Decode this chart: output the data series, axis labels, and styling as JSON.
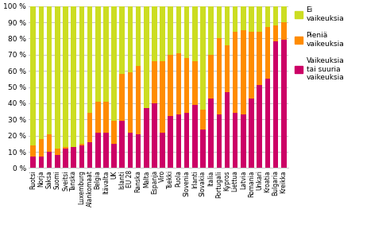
{
  "categories": [
    "Ruotsi",
    "Norja",
    "Saksa",
    "Suomi",
    "Sveitsi",
    "Tanska",
    "Luxemburg",
    "Alankomaat",
    "Belgia",
    "Itävalta",
    "UK",
    "Islanti",
    "EU 28",
    "Ranska",
    "Malta",
    "Espanja",
    "Viro",
    "Tsekki",
    "Puola",
    "Slovenia",
    "Irlanti",
    "Slovakia",
    "Italia",
    "Portugali",
    "Kypros",
    "Liettua",
    "Latvia",
    "Romania",
    "Unkari",
    "Kroatia",
    "Bulgaria",
    "Kreikka"
  ],
  "vaikeuksia": [
    7,
    7,
    10,
    8,
    12,
    13,
    14,
    16,
    22,
    22,
    15,
    29,
    22,
    21,
    37,
    40,
    22,
    32,
    33,
    34,
    39,
    24,
    43,
    33,
    47,
    34,
    33,
    43,
    51,
    55,
    78,
    79
  ],
  "pienia": [
    7,
    11,
    11,
    4,
    1,
    0,
    1,
    18,
    19,
    19,
    14,
    29,
    37,
    42,
    0,
    26,
    44,
    38,
    38,
    34,
    27,
    12,
    27,
    47,
    29,
    50,
    52,
    41,
    33,
    32,
    10,
    11
  ],
  "ei": [
    86,
    82,
    79,
    88,
    87,
    87,
    85,
    66,
    59,
    59,
    71,
    42,
    41,
    37,
    63,
    34,
    34,
    30,
    29,
    32,
    34,
    64,
    30,
    20,
    24,
    16,
    15,
    16,
    16,
    13,
    12,
    10
  ],
  "color_vaikeuksia": "#CC0066",
  "color_pienia": "#FF8C00",
  "color_ei": "#CCDD22",
  "yticks": [
    0,
    10,
    20,
    30,
    40,
    50,
    60,
    70,
    80,
    90,
    100
  ],
  "ylabel_ticks": [
    "0 %",
    "10 %",
    "20 %",
    "30 %",
    "40 %",
    "50 %",
    "60 %",
    "70 %",
    "80 %",
    "90 %",
    "100 %"
  ]
}
